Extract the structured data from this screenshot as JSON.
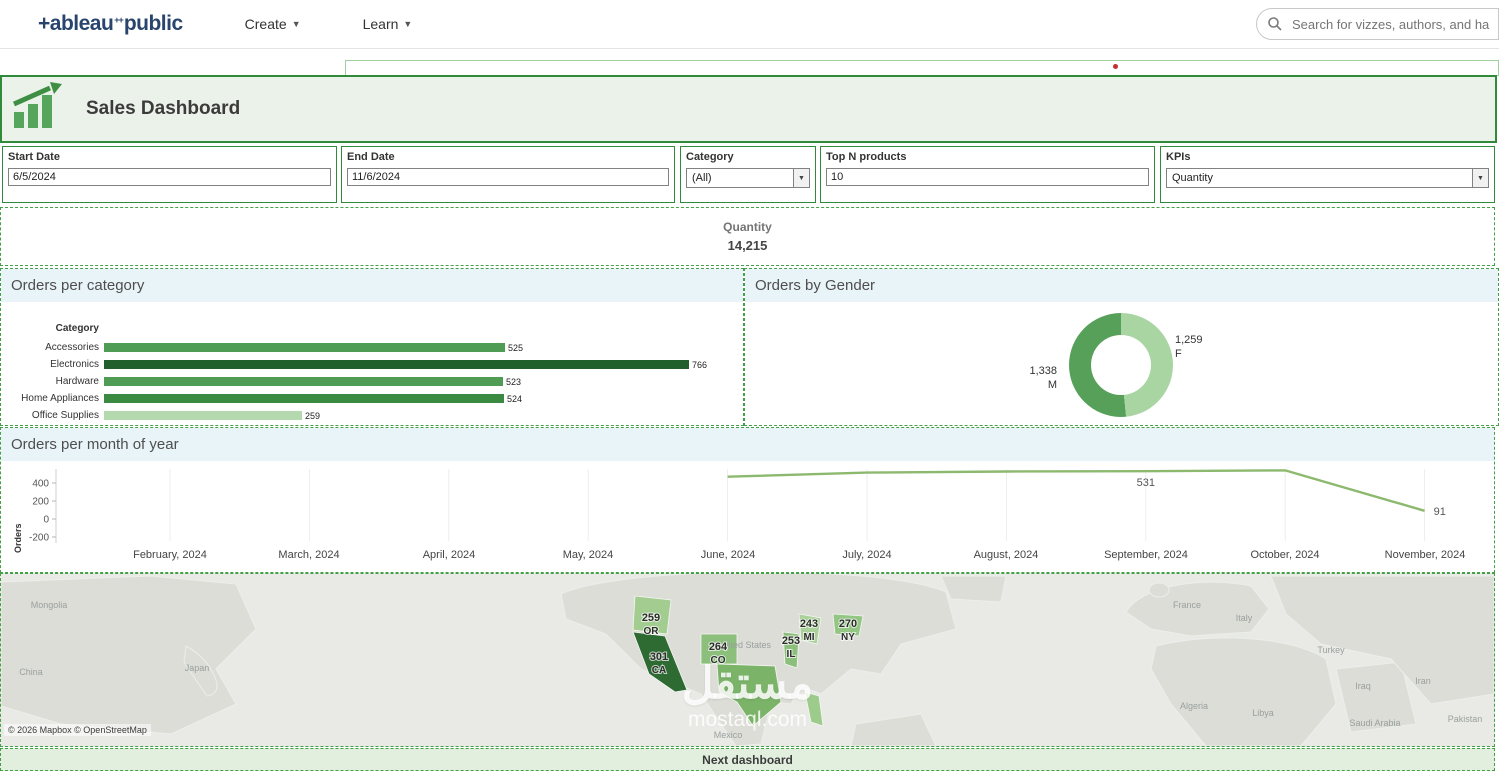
{
  "nav": {
    "brand": {
      "prefix": "+",
      "name": "ableau",
      "plus_cluster": "++",
      "suffix": "public"
    },
    "menus": [
      {
        "label": "Create"
      },
      {
        "label": "Learn"
      }
    ],
    "search": {
      "placeholder": "Search for vizzes, authors, and ha"
    }
  },
  "dashboard": {
    "title": "Sales Dashboard"
  },
  "filters": [
    {
      "label": "Start Date",
      "value": "6/5/2024"
    },
    {
      "label": "End Date",
      "value": "11/6/2024"
    },
    {
      "label": "Category",
      "value": "(All)"
    },
    {
      "label": "Top N products",
      "value": "10"
    },
    {
      "label": "KPIs",
      "value": "Quantity"
    }
  ],
  "kpi": {
    "label": "Quantity",
    "value": "14,215"
  },
  "chart_data": [
    {
      "type": "bar",
      "title": "Orders per category",
      "orientation": "horizontal",
      "axis_header": "Category",
      "categories": [
        "Accessories",
        "Electronics",
        "Hardware",
        "Home Appliances",
        "Office Supplies"
      ],
      "values": [
        525,
        766,
        523,
        524,
        259
      ],
      "colors": [
        "#4f9d55",
        "#215f2c",
        "#4f9d55",
        "#3a8a42",
        "#b5d9ae"
      ],
      "xlim": [
        0,
        800
      ],
      "grid": false
    },
    {
      "type": "pie",
      "title": "Orders by Gender",
      "donut": true,
      "slices": [
        {
          "label": "M",
          "value": 1338,
          "display": "1,338",
          "color": "#57a05a"
        },
        {
          "label": "F",
          "value": 1259,
          "display": "1,259",
          "color": "#a8d5a2"
        }
      ]
    },
    {
      "type": "line",
      "title": "Orders per month of year",
      "ylabel": "Orders",
      "color": "#8cb96e",
      "yticks": [
        400,
        200,
        0,
        -200
      ],
      "ylim": [
        -300,
        600
      ],
      "x": [
        "February, 2024",
        "March, 2024",
        "April, 2024",
        "May, 2024",
        "June, 2024",
        "July, 2024",
        "August, 2024",
        "September, 2024",
        "October, 2024",
        "November, 2024"
      ],
      "values": [
        null,
        null,
        null,
        null,
        470,
        515,
        528,
        531,
        540,
        91
      ],
      "annotations": [
        {
          "month": "September, 2024",
          "value": 531,
          "text": "531"
        },
        {
          "month": "November, 2024",
          "value": 91,
          "text": "91"
        }
      ]
    },
    {
      "type": "map",
      "states": [
        {
          "code": "OR",
          "value": 259,
          "color": "#a3cd90"
        },
        {
          "code": "CA",
          "value": 301,
          "color": "#2e6b33"
        },
        {
          "code": "CO",
          "value": 264,
          "color": "#8cbf7b"
        },
        {
          "code": "IL",
          "value": 253,
          "color": "#8cbf7b"
        },
        {
          "code": "MI",
          "value": 243,
          "color": "#a9d199"
        },
        {
          "code": "NY",
          "value": 270,
          "color": "#93c583"
        }
      ],
      "country_labels": [
        "Mongolia",
        "China",
        "Japan",
        "United States",
        "Mexico",
        "France",
        "Italy",
        "Turkey",
        "Iraq",
        "Iran",
        "Algeria",
        "Libya",
        "Saudi Arabia",
        "Pakistan"
      ],
      "attribution": "© 2026 Mapbox © OpenStreetMap",
      "watermark": {
        "line1": "مستقل",
        "line2": "mostaql.com"
      }
    }
  ],
  "footer": {
    "label": "Next dashboard"
  }
}
